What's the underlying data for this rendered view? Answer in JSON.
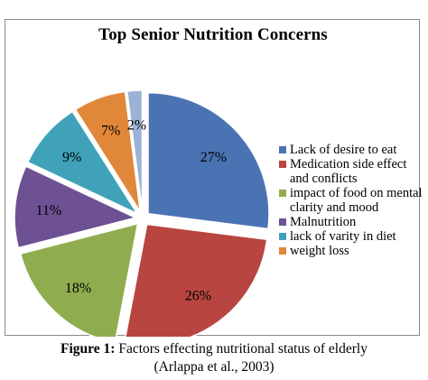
{
  "chart_data": {
    "type": "pie",
    "title": "Top Senior Nutrition Concerns",
    "slices": [
      {
        "label": "Lack of desire to eat",
        "value": 27,
        "display": "27%",
        "color": "#4a73b3"
      },
      {
        "label": "Medication side effect and conflicts",
        "value": 26,
        "display": "26%",
        "color": "#b84540"
      },
      {
        "label": "impact of food on mental clarity and mood",
        "value": 18,
        "display": "18%",
        "color": "#8fad4e"
      },
      {
        "label": "Malnutrition",
        "value": 11,
        "display": "11%",
        "color": "#6e5193"
      },
      {
        "label": "lack of varity in diet",
        "value": 9,
        "display": "9%",
        "color": "#3fa2b9"
      },
      {
        "label": "weight loss",
        "value": 7,
        "display": "7%",
        "color": "#e0873a"
      },
      {
        "label": "",
        "value": 2,
        "display": "2%",
        "color": "#9bb2d6"
      }
    ],
    "legend_position": "right"
  },
  "caption": {
    "label": "Figure 1:",
    "text": "Factors effecting nutritional status of elderly",
    "source": "(Arlappa et al., 2003)"
  }
}
